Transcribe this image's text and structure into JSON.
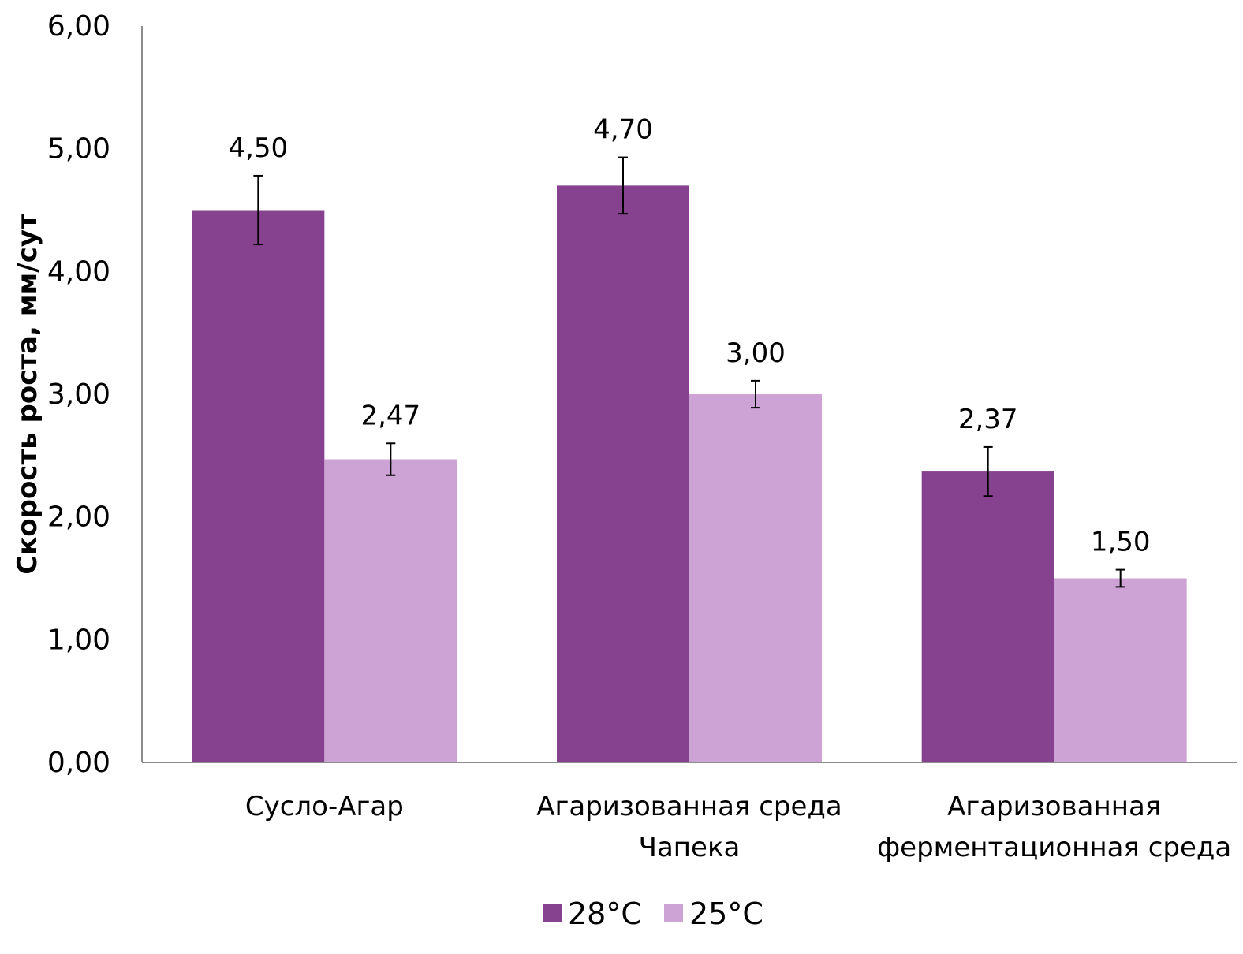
{
  "chart_data": {
    "type": "bar",
    "title": "",
    "xlabel": "",
    "ylabel": "Скорость роста, мм/сут",
    "ylim": [
      0,
      6
    ],
    "yticks": [
      0,
      1,
      2,
      3,
      4,
      5,
      6
    ],
    "ytick_labels": [
      "0,00",
      "1,00",
      "2,00",
      "3,00",
      "4,00",
      "5,00",
      "6,00"
    ],
    "grid": false,
    "legend_position": "bottom",
    "categories": [
      [
        "Сусло-Агар"
      ],
      [
        "Агаризованная среда",
        "Чапека"
      ],
      [
        "Агаризованная",
        "ферментационная среда"
      ]
    ],
    "series": [
      {
        "name": "28°C",
        "color": "#86418F",
        "values": [
          4.5,
          4.7,
          2.37
        ],
        "labels": [
          "4,50",
          "4,70",
          "2,37"
        ],
        "errors": [
          0.28,
          0.23,
          0.2
        ]
      },
      {
        "name": "25°C",
        "color": "#CDA2D4",
        "values": [
          2.47,
          3.0,
          1.5
        ],
        "labels": [
          "2,47",
          "3,00",
          "1,50"
        ],
        "errors": [
          0.13,
          0.11,
          0.07
        ]
      }
    ]
  }
}
